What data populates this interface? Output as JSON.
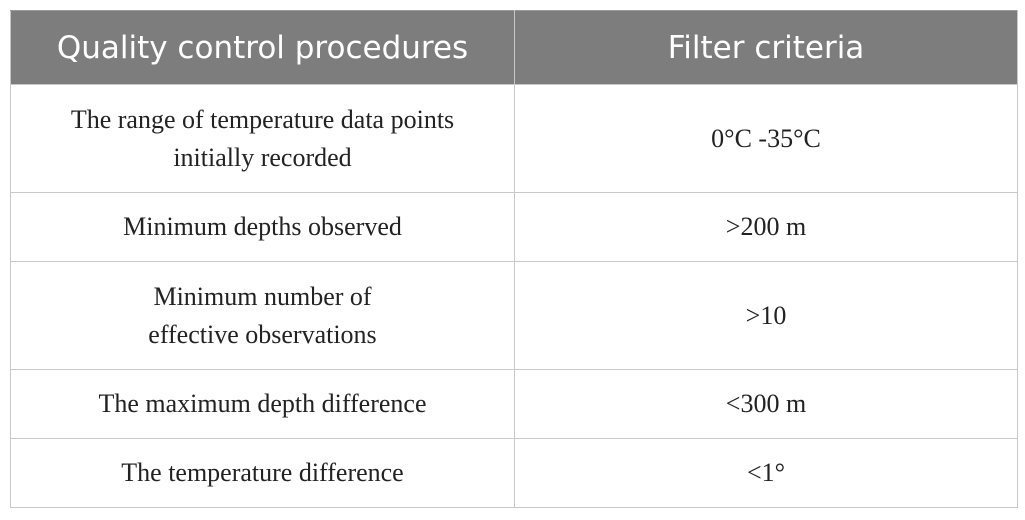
{
  "table": {
    "headers": [
      "Quality control procedures",
      "Filter criteria"
    ],
    "rows": [
      {
        "procedure_lines": [
          "The range of temperature data points",
          "initially recorded"
        ],
        "criteria": "0°C -35°C"
      },
      {
        "procedure_lines": [
          "Minimum depths observed"
        ],
        "criteria": ">200 m"
      },
      {
        "procedure_lines": [
          "Minimum number of",
          "effective observations"
        ],
        "criteria": ">10"
      },
      {
        "procedure_lines": [
          "The maximum depth difference"
        ],
        "criteria": "<300 m"
      },
      {
        "procedure_lines": [
          "The temperature difference"
        ],
        "criteria": "<1°"
      }
    ]
  }
}
